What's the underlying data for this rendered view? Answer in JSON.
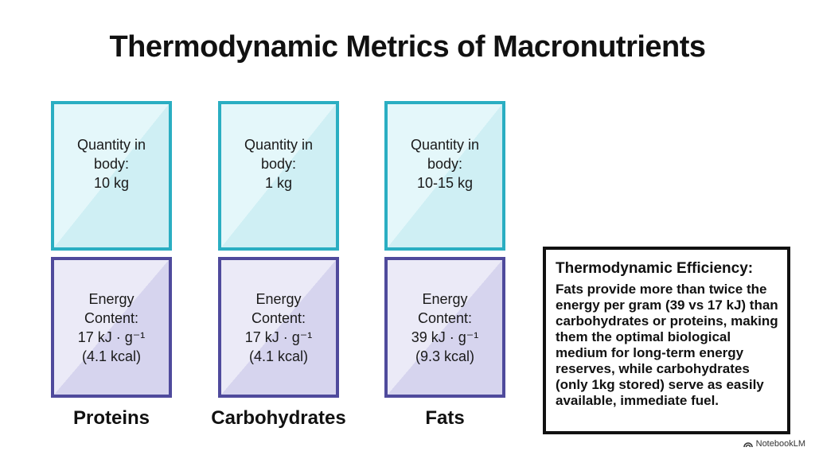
{
  "title": "Thermodynamic Metrics of Macronutrients",
  "columns": [
    {
      "name": "Proteins",
      "quantity_lines": [
        "Quantity in",
        "body:",
        "10 kg"
      ],
      "energy_lines": [
        "Energy",
        "Content:",
        "17 kJ · g⁻¹",
        "(4.1 kcal)"
      ]
    },
    {
      "name": "Carbohydrates",
      "quantity_lines": [
        "Quantity in",
        "body:",
        "1 kg"
      ],
      "energy_lines": [
        "Energy",
        "Content:",
        "17 kJ · g⁻¹",
        "(4.1 kcal)"
      ]
    },
    {
      "name": "Fats",
      "quantity_lines": [
        "Quantity in",
        "body:",
        "10-15 kg"
      ],
      "energy_lines": [
        "Energy",
        "Content:",
        "39 kJ · g⁻¹",
        "(9.3 kcal)"
      ]
    }
  ],
  "info_box": {
    "heading": "Thermodynamic Efficiency:",
    "body": "Fats provide more than twice the energy per gram (39 vs 17 kJ) than carbohydrates or proteins, making them the optimal biological medium for long-term energy reserves, while carbohydrates (only 1kg stored) serve as easily available, immediate fuel."
  },
  "brand": {
    "icon": "notebooklm-logo-icon",
    "label": "NotebookLM"
  },
  "colors": {
    "quantity_border": "#2aaec2",
    "energy_border": "#4f4a9c",
    "text": "#111111"
  }
}
